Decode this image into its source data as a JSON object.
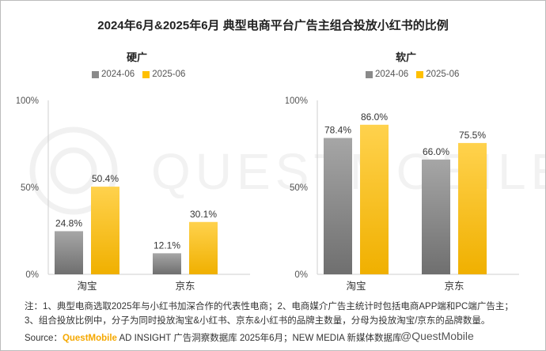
{
  "title": "2024年6月&2025年6月 典型电商平台广告主组合投放小红书的比例",
  "colors": {
    "series_2024": "#8a8a8a",
    "series_2025": "#ffc000",
    "brand": "#f5a800"
  },
  "legend": [
    "2024-06",
    "2025-06"
  ],
  "chart_data": [
    {
      "type": "bar",
      "title": "硬广",
      "categories": [
        "淘宝",
        "京东"
      ],
      "series": [
        {
          "name": "2024-06",
          "values": [
            24.8,
            12.1
          ]
        },
        {
          "name": "2025-06",
          "values": [
            50.4,
            30.1
          ]
        }
      ],
      "y_ticks": [
        "0%",
        "50%",
        "100%"
      ],
      "ylim": [
        0,
        100
      ],
      "grid": false,
      "legend_position": "top"
    },
    {
      "type": "bar",
      "title": "软广",
      "categories": [
        "淘宝",
        "京东"
      ],
      "series": [
        {
          "name": "2024-06",
          "values": [
            78.4,
            66.0
          ]
        },
        {
          "name": "2025-06",
          "values": [
            86.0,
            75.5
          ]
        }
      ],
      "y_ticks": [
        "0%",
        "50%",
        "100%"
      ],
      "ylim": [
        0,
        100
      ],
      "grid": false,
      "legend_position": "top"
    }
  ],
  "notes": {
    "line1": "注：1、典型电商选取2025年与小红书加深合作的代表性电商；2、电商媒介广告主统计时包括电商APP端和PC端广告主；",
    "line2": "3、组合投放比例中，分子为同时投放淘宝&小红书、京东&小红书的品牌主数量，分母为投放淘宝/京东的品牌数量。"
  },
  "source": {
    "prefix": "Source：",
    "brand": "QuestMobile",
    "text": " AD INSIGHT 广告洞察数据库 2025年6月；NEW MEDIA 新媒体数据库"
  },
  "watermark": {
    "logo_text": "QUESTMOBILE",
    "credit": "@QuestMobile"
  }
}
